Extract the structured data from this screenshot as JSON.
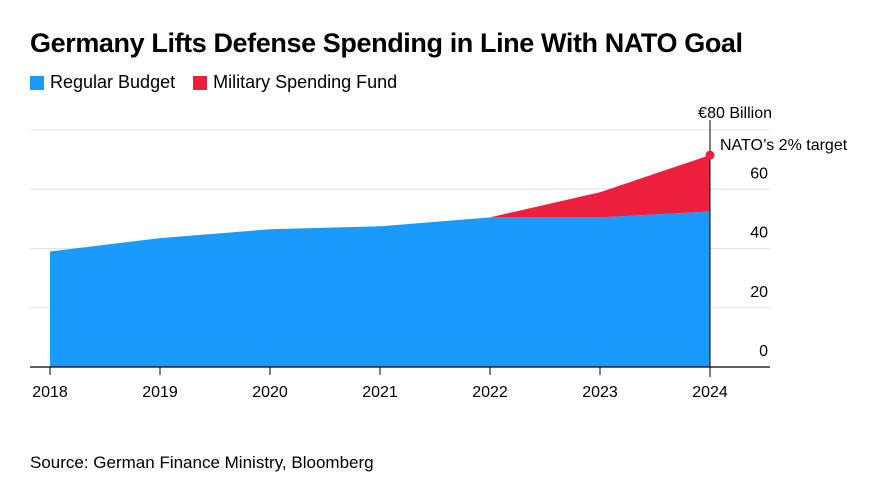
{
  "title": "Germany Lifts Defense Spending in Line With NATO Goal",
  "legend": [
    {
      "label": "Regular Budget",
      "color": "#1a9bfc"
    },
    {
      "label": "Military Spending Fund",
      "color": "#ee1f3c"
    }
  ],
  "source": "Source: German Finance Ministry, Bloomberg",
  "chart_data": {
    "type": "area",
    "stacked": true,
    "title": "Germany Lifts Defense Spending in Line With NATO Goal",
    "x": [
      "2018",
      "2019",
      "2020",
      "2021",
      "2022",
      "2023",
      "2024"
    ],
    "series": [
      {
        "name": "Regular Budget",
        "color": "#1a9bfc",
        "values": [
          39,
          43.5,
          46.5,
          47.5,
          50.5,
          50.5,
          52.5
        ]
      },
      {
        "name": "Military Spending Fund",
        "color": "#ee1f3c",
        "values": [
          null,
          null,
          null,
          null,
          0,
          8.5,
          19
        ]
      }
    ],
    "ylim": [
      0,
      80
    ],
    "yticks": [
      0,
      20,
      40,
      60
    ],
    "ytick_labels": [
      "0",
      "20",
      "40",
      "60"
    ],
    "y_unit_label": "€80 Billion",
    "grid": true,
    "legend_position": "top-left",
    "annotation": {
      "text": "NATO’s 2% target",
      "x": "2024",
      "y": 71.5
    }
  }
}
